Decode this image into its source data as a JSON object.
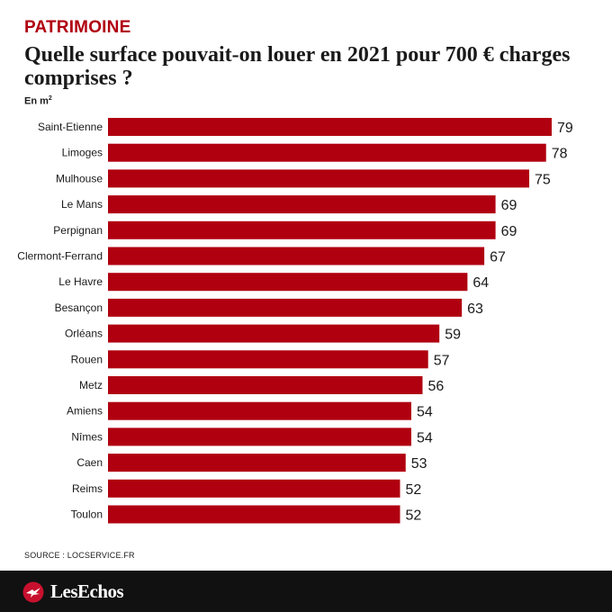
{
  "kicker": "PATRIMOINE",
  "title": "Quelle surface pouvait-on louer en 2021 pour 700 € charges comprises ?",
  "unit_label": "En m",
  "unit_sup": "2",
  "source": "SOURCE : LOCSERVICE.FR",
  "footer": {
    "logo_text": "LesEchos"
  },
  "colors": {
    "accent": "#b00010",
    "bar": "#b00010",
    "text": "#1a1a1a",
    "footer_bg": "#111111"
  },
  "icons": {
    "logo": "echos-bird-logo-icon"
  },
  "chart_data": {
    "type": "bar",
    "orientation": "horizontal",
    "categories": [
      "Saint-Etienne",
      "Limoges",
      "Mulhouse",
      "Le Mans",
      "Perpignan",
      "Clermont-Ferrand",
      "Le Havre",
      "Besançon",
      "Orléans",
      "Rouen",
      "Metz",
      "Amiens",
      "Nîmes",
      "Caen",
      "Reims",
      "Toulon"
    ],
    "values": [
      79,
      78,
      75,
      69,
      69,
      67,
      64,
      63,
      59,
      57,
      56,
      54,
      54,
      53,
      52,
      52
    ],
    "title": "Quelle surface pouvait-on louer en 2021 pour 700 € charges comprises ?",
    "ylabel": "En m²",
    "xlim": [
      0,
      79
    ],
    "grid": false,
    "legend": "none",
    "data_labels": true
  }
}
